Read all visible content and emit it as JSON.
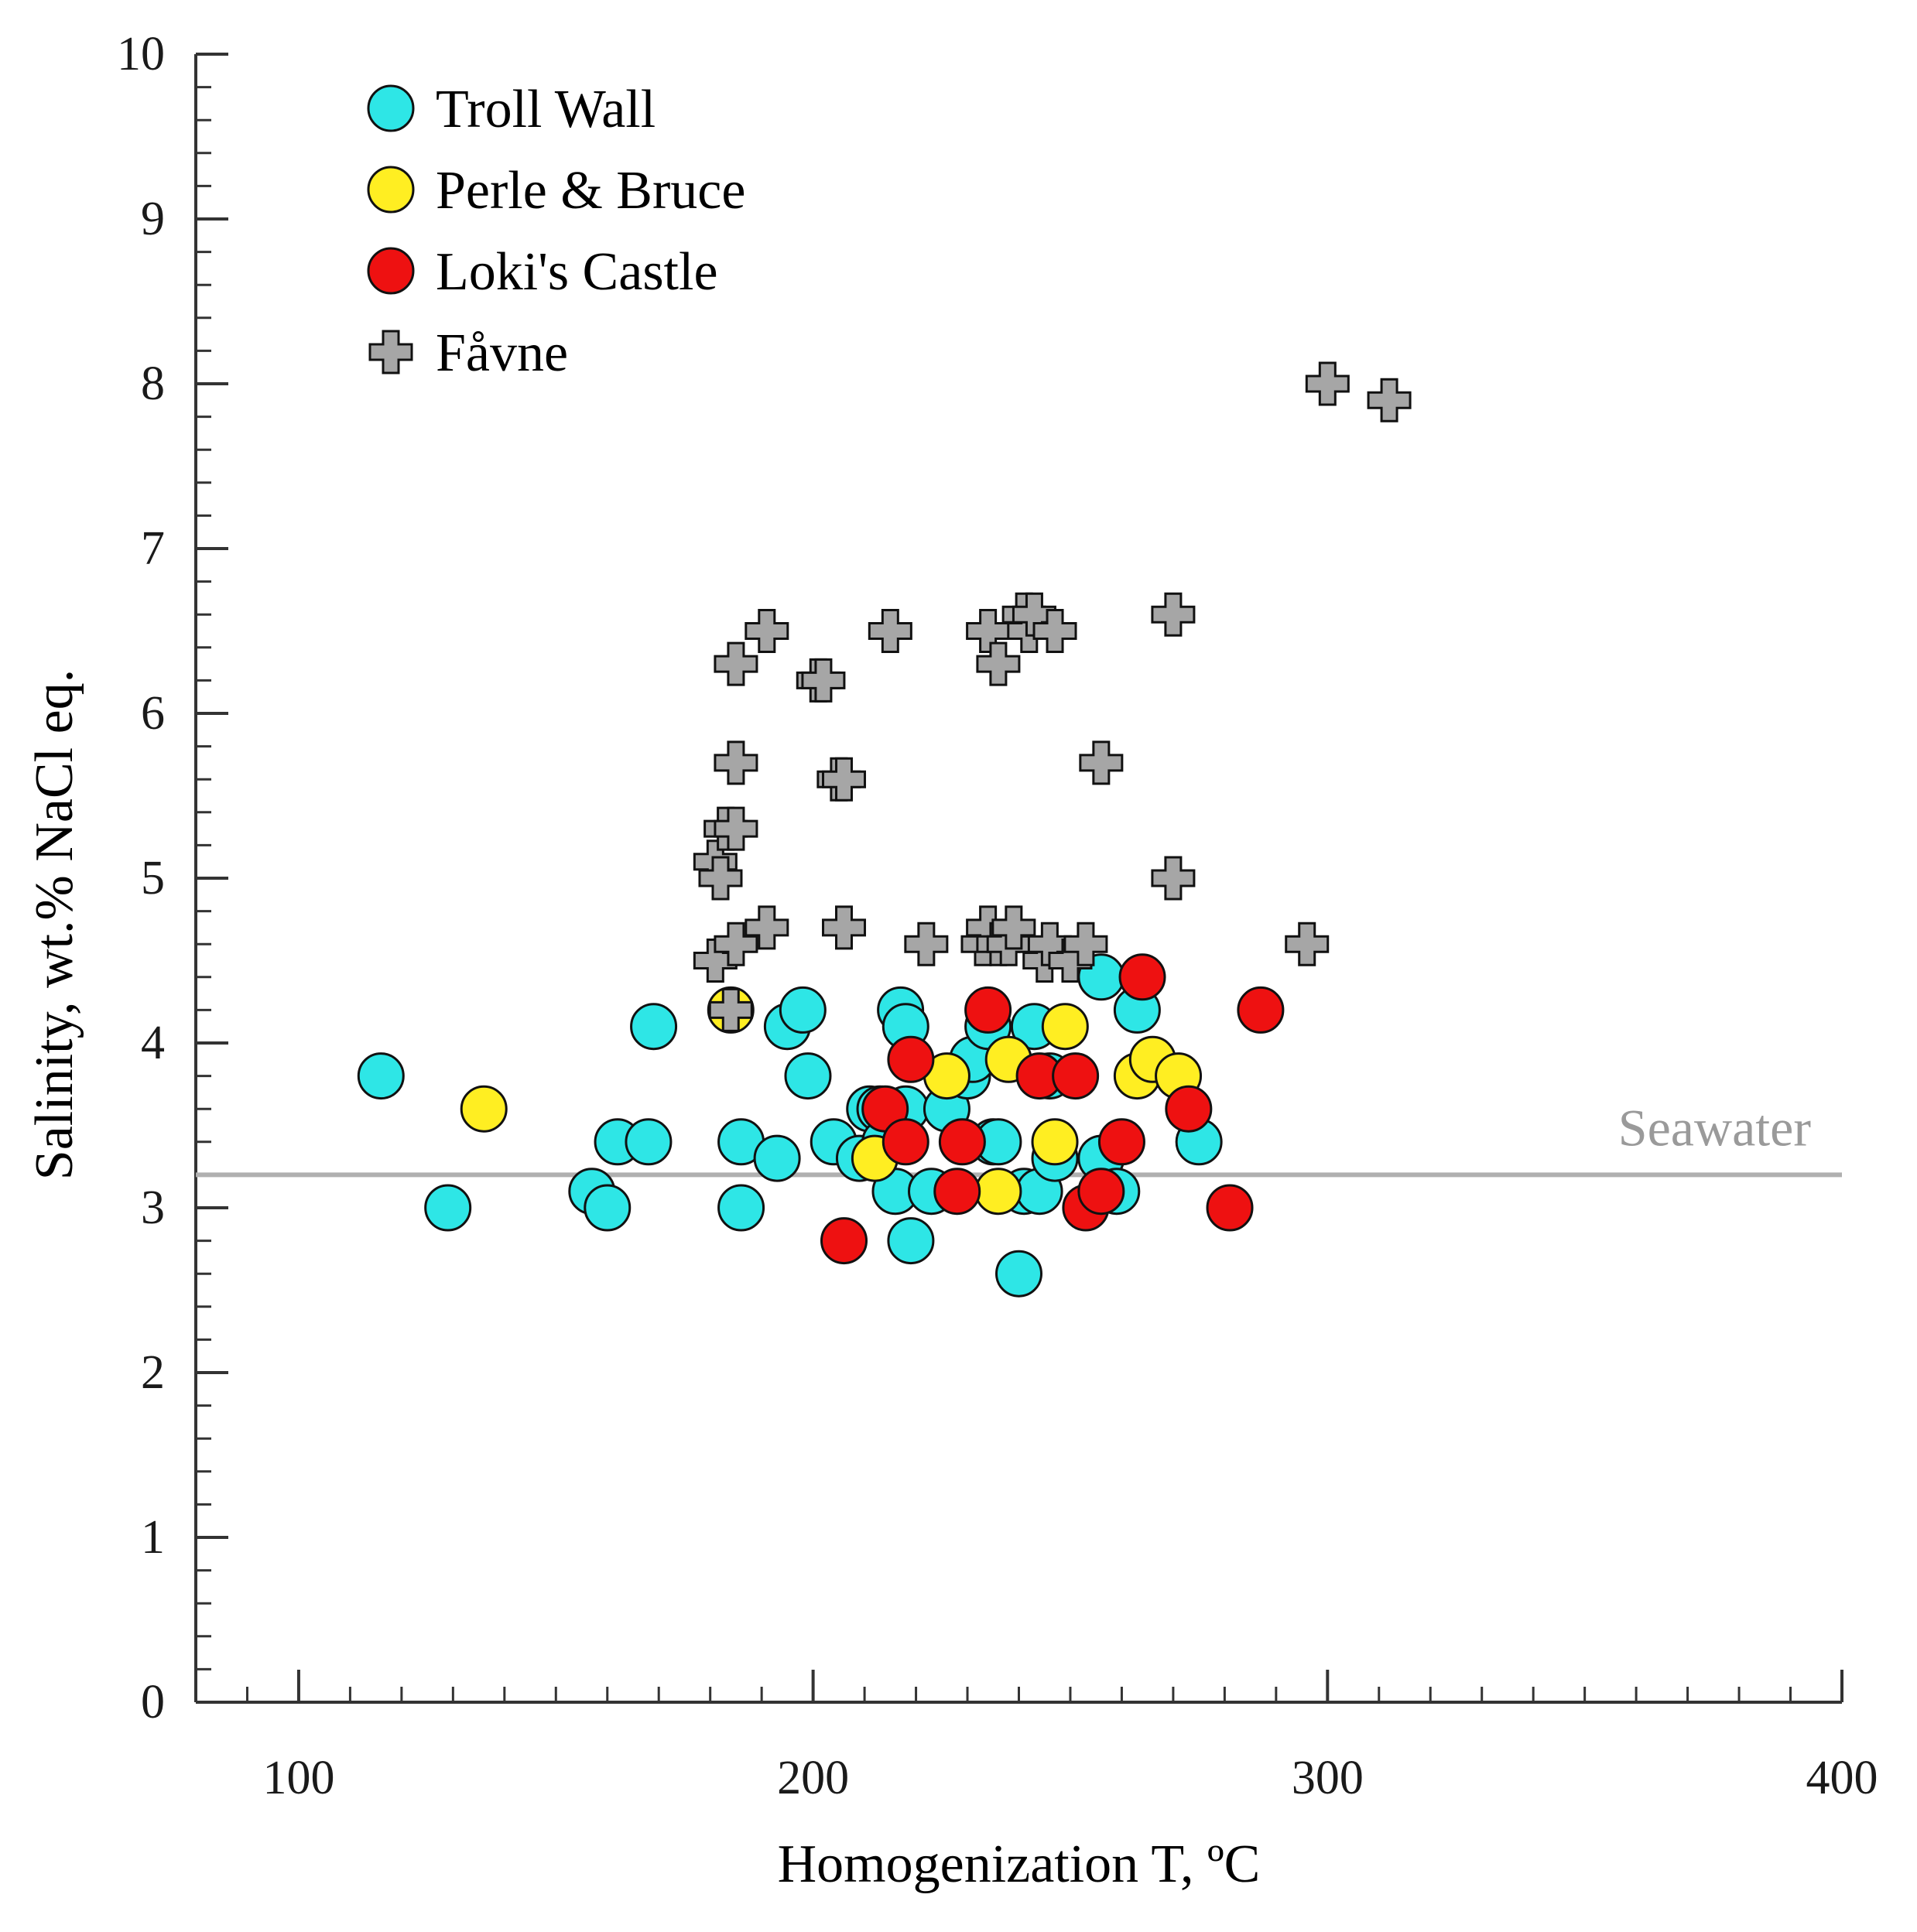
{
  "chart_data": {
    "type": "scatter",
    "xlabel": "Homogenization T, ºC",
    "ylabel": "Salinity, wt.% NaCl eq.",
    "xlim": [
      80,
      400
    ],
    "ylim": [
      0,
      10
    ],
    "x_ticks": [
      100,
      200,
      300,
      400
    ],
    "x_tick_labels": [
      "100",
      "200",
      "300",
      "400"
    ],
    "y_ticks": [
      0,
      1,
      2,
      3,
      4,
      5,
      6,
      7,
      8,
      9,
      10
    ],
    "y_tick_labels": [
      "0",
      "1",
      "2",
      "3",
      "4",
      "5",
      "6",
      "7",
      "8",
      "9",
      "10"
    ],
    "x_minor_step": 10,
    "y_minor_step": 0.2,
    "grid": false,
    "legend_position": "top-left",
    "reference_line": {
      "label": "Seawater",
      "y": 3.2,
      "color": "#b0b0b0"
    },
    "series": [
      {
        "name": "Troll Wall",
        "marker": "circle",
        "color": "#2ee6e6",
        "points": [
          [
            116,
            3.8
          ],
          [
            129,
            3.0
          ],
          [
            157,
            3.1
          ],
          [
            160,
            3.0
          ],
          [
            162,
            3.4
          ],
          [
            168,
            3.4
          ],
          [
            169,
            4.1
          ],
          [
            186,
            3.4
          ],
          [
            186,
            3.0
          ],
          [
            193,
            3.3
          ],
          [
            195,
            4.1
          ],
          [
            198,
            4.2
          ],
          [
            199,
            3.8
          ],
          [
            204,
            3.4
          ],
          [
            209,
            3.3
          ],
          [
            211,
            3.6
          ],
          [
            213,
            3.6
          ],
          [
            214,
            3.4
          ],
          [
            216,
            3.1
          ],
          [
            217,
            4.2
          ],
          [
            218,
            4.1
          ],
          [
            218,
            3.6
          ],
          [
            219,
            2.8
          ],
          [
            223,
            3.1
          ],
          [
            226,
            3.6
          ],
          [
            230,
            3.8
          ],
          [
            231,
            3.9
          ],
          [
            234,
            4.1
          ],
          [
            235,
            3.4
          ],
          [
            236,
            3.4
          ],
          [
            240,
            2.6
          ],
          [
            241,
            3.1
          ],
          [
            243,
            4.1
          ],
          [
            244,
            3.1
          ],
          [
            246,
            3.8
          ],
          [
            247,
            3.3
          ],
          [
            256,
            4.4
          ],
          [
            256,
            3.3
          ],
          [
            259,
            3.1
          ],
          [
            263,
            4.2
          ],
          [
            275,
            3.4
          ]
        ]
      },
      {
        "name": "Perle & Bruce",
        "marker": "circle",
        "color": "#ffee22",
        "points": [
          [
            136,
            3.6
          ],
          [
            184,
            4.2
          ],
          [
            212,
            3.3
          ],
          [
            226,
            3.8
          ],
          [
            236,
            3.1
          ],
          [
            238,
            3.9
          ],
          [
            247,
            3.4
          ],
          [
            249,
            4.1
          ],
          [
            263,
            3.8
          ],
          [
            266,
            3.9
          ],
          [
            271,
            3.8
          ]
        ]
      },
      {
        "name": "Loki's Castle",
        "marker": "circle",
        "color": "#ee1111",
        "points": [
          [
            206,
            2.8
          ],
          [
            214,
            3.6
          ],
          [
            218,
            3.4
          ],
          [
            219,
            3.9
          ],
          [
            228,
            3.1
          ],
          [
            229,
            3.4
          ],
          [
            234,
            4.2
          ],
          [
            244,
            3.8
          ],
          [
            251,
            3.8
          ],
          [
            253,
            3.0
          ],
          [
            256,
            3.1
          ],
          [
            260,
            3.4
          ],
          [
            264,
            4.4
          ],
          [
            273,
            3.6
          ],
          [
            281,
            3.0
          ],
          [
            287,
            4.2
          ]
        ]
      },
      {
        "name": "Fåvne",
        "marker": "plus",
        "color": "#a6a6a6",
        "points": [
          [
            181,
            4.5
          ],
          [
            181,
            5.1
          ],
          [
            182,
            5.0
          ],
          [
            183,
            5.3
          ],
          [
            184,
            4.2
          ],
          [
            185,
            5.3
          ],
          [
            185,
            5.7
          ],
          [
            185,
            6.3
          ],
          [
            185,
            4.6
          ],
          [
            191,
            4.7
          ],
          [
            191,
            6.5
          ],
          [
            201,
            6.2
          ],
          [
            202,
            6.2
          ],
          [
            205,
            5.6
          ],
          [
            206,
            5.6
          ],
          [
            206,
            4.7
          ],
          [
            215,
            6.5
          ],
          [
            222,
            4.6
          ],
          [
            233,
            4.6
          ],
          [
            234,
            6.5
          ],
          [
            234,
            4.7
          ],
          [
            236,
            6.3
          ],
          [
            236,
            4.6
          ],
          [
            238,
            4.6
          ],
          [
            239,
            4.7
          ],
          [
            241,
            6.6
          ],
          [
            242,
            6.5
          ],
          [
            243,
            6.6
          ],
          [
            245,
            4.5
          ],
          [
            246,
            4.6
          ],
          [
            247,
            6.5
          ],
          [
            250,
            4.5
          ],
          [
            253,
            4.6
          ],
          [
            256,
            5.7
          ],
          [
            270,
            6.6
          ],
          [
            270,
            5.0
          ],
          [
            296,
            4.6
          ],
          [
            300,
            8.0
          ],
          [
            312,
            7.9
          ]
        ]
      }
    ]
  }
}
